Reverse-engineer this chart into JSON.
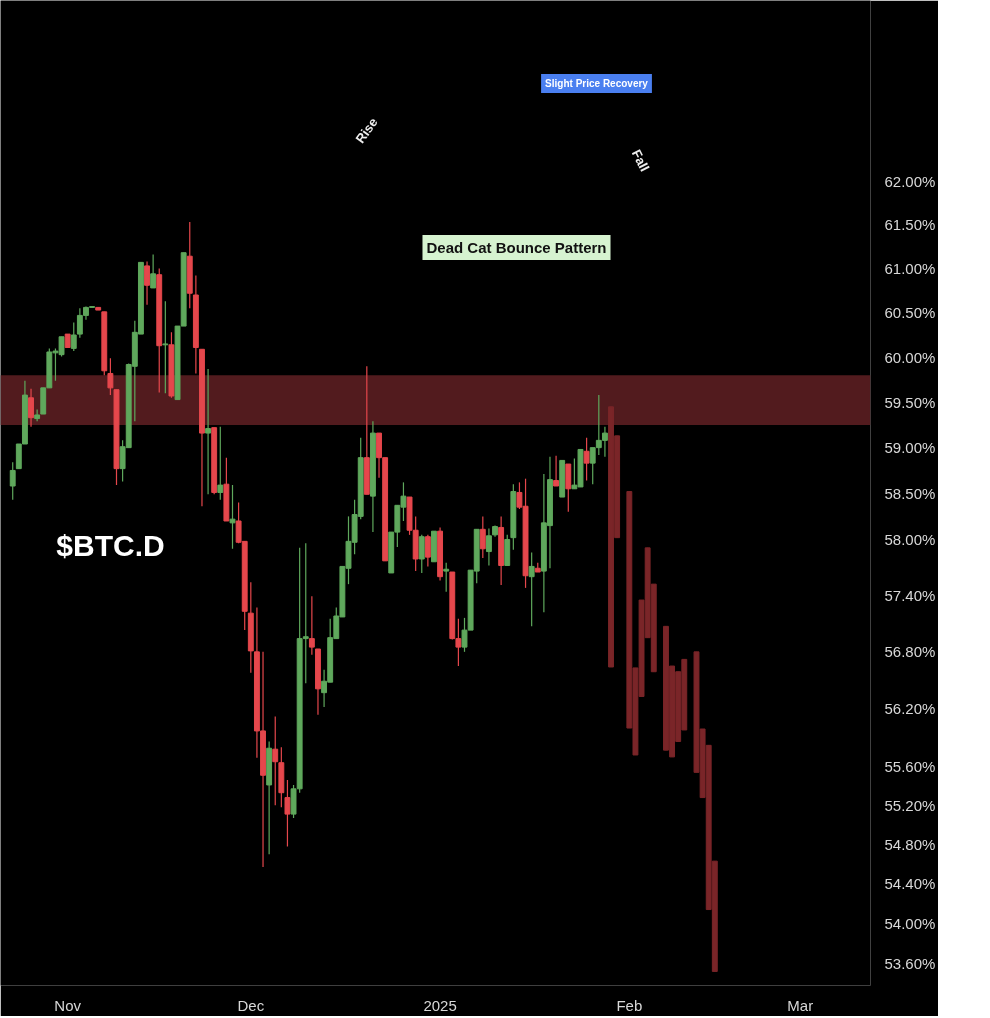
{
  "chart_data": {
    "type": "candlestick",
    "annotations": [
      "$BTC.D",
      "Rise",
      "Slight Price Recovery",
      "Fall",
      "Dead Cat Bounce Pattern"
    ],
    "xlim": [
      "2024-10-21",
      "2025-03-12T12:00"
    ],
    "xticks": [
      {
        "value": "2024-11-01",
        "label": "Nov"
      },
      {
        "value": "2024-12-01",
        "label": "Dec"
      },
      {
        "value": "2025-01-01",
        "label": "2025"
      },
      {
        "value": "2025-02-01",
        "label": "Feb"
      },
      {
        "value": "2025-03-01",
        "label": "Mar"
      }
    ],
    "log": true,
    "ylim": [
      53.38,
      64.12
    ],
    "yticks": [
      {
        "value": 62,
        "label": "62.00%"
      },
      {
        "value": 61.5,
        "label": "61.50%"
      },
      {
        "value": 61,
        "label": "61.00%"
      },
      {
        "value": 60.5,
        "label": "60.50%"
      },
      {
        "value": 60,
        "label": "60.00%"
      },
      {
        "value": 59.5,
        "label": "59.50%"
      },
      {
        "value": 59,
        "label": "59.00%"
      },
      {
        "value": 58.5,
        "label": "58.50%"
      },
      {
        "value": 58,
        "label": "58.00%"
      },
      {
        "value": 57.4,
        "label": "57.40%"
      },
      {
        "value": 56.8,
        "label": "56.80%"
      },
      {
        "value": 56.2,
        "label": "56.20%"
      },
      {
        "value": 55.6,
        "label": "55.60%"
      },
      {
        "value": 55.2,
        "label": "55.20%"
      },
      {
        "value": 54.8,
        "label": "54.80%"
      },
      {
        "value": 54.4,
        "label": "54.40%"
      },
      {
        "value": 54,
        "label": "54.00%"
      },
      {
        "value": 53.6,
        "label": "53.60%"
      }
    ],
    "bands": [
      {
        "axis": "y",
        "from": 59.25,
        "to": 59.8,
        "color": "#521b1e"
      }
    ],
    "series": [
      {
        "x": [
          "2024-10-23",
          "2024-10-24",
          "2024-10-25",
          "2024-10-26",
          "2024-10-27",
          "2024-10-28",
          "2024-10-29",
          "2024-10-30",
          "2024-10-31",
          "2024-11-01",
          "2024-11-02",
          "2024-11-03",
          "2024-11-04",
          "2024-11-05",
          "2024-11-06",
          "2024-11-07",
          "2024-11-08",
          "2024-11-09",
          "2024-11-10",
          "2024-11-11",
          "2024-11-12",
          "2024-11-13",
          "2024-11-14",
          "2024-11-15",
          "2024-11-16",
          "2024-11-17",
          "2024-11-18",
          "2024-11-19",
          "2024-11-20",
          "2024-11-21",
          "2024-11-22",
          "2024-11-23",
          "2024-11-24",
          "2024-11-25",
          "2024-11-26",
          "2024-11-27",
          "2024-11-28",
          "2024-11-29",
          "2024-11-30",
          "2024-12-01",
          "2024-12-02",
          "2024-12-03",
          "2024-12-04",
          "2024-12-05",
          "2024-12-06",
          "2024-12-07",
          "2024-12-08",
          "2024-12-09",
          "2024-12-10",
          "2024-12-11",
          "2024-12-12",
          "2024-12-13",
          "2024-12-14",
          "2024-12-15",
          "2024-12-16",
          "2024-12-17",
          "2024-12-18",
          "2024-12-19",
          "2024-12-20",
          "2024-12-21",
          "2024-12-22",
          "2024-12-23",
          "2024-12-24",
          "2024-12-25",
          "2024-12-26",
          "2024-12-27",
          "2024-12-28",
          "2024-12-29",
          "2024-12-30",
          "2024-12-31",
          "2025-01-01",
          "2025-01-02",
          "2025-01-03",
          "2025-01-04",
          "2025-01-05",
          "2025-01-06",
          "2025-01-07",
          "2025-01-08",
          "2025-01-09",
          "2025-01-10",
          "2025-01-11",
          "2025-01-12",
          "2025-01-13",
          "2025-01-14",
          "2025-01-15",
          "2025-01-16",
          "2025-01-17",
          "2025-01-18",
          "2025-01-19",
          "2025-01-20",
          "2025-01-21",
          "2025-01-22",
          "2025-01-23",
          "2025-01-24",
          "2025-01-25",
          "2025-01-26",
          "2025-01-27",
          "2025-01-28"
        ],
        "ohlc": [
          [
            58.58,
            58.84,
            58.43,
            58.75
          ],
          [
            58.77,
            59.04,
            58.77,
            59.04
          ],
          [
            59.04,
            59.74,
            59.04,
            59.58
          ],
          [
            59.55,
            59.65,
            59.23,
            59.33
          ],
          [
            59.32,
            59.42,
            59.29,
            59.36
          ],
          [
            59.37,
            59.66,
            59.37,
            59.66
          ],
          [
            59.66,
            60.1,
            59.66,
            60.06
          ],
          [
            60.05,
            60.1,
            59.74,
            60.07
          ],
          [
            60.03,
            60.23,
            60.01,
            60.23
          ],
          [
            60.26,
            60.26,
            60.11,
            60.11
          ],
          [
            60.1,
            60.39,
            60.07,
            60.25
          ],
          [
            60.26,
            60.55,
            60.22,
            60.47
          ],
          [
            60.47,
            60.57,
            60.42,
            60.56
          ],
          [
            60.56,
            60.57,
            60.56,
            60.57
          ],
          [
            60.56,
            60.56,
            60.53,
            60.53
          ],
          [
            60.51,
            60.51,
            59.8,
            59.85
          ],
          [
            59.82,
            59.99,
            59.58,
            59.66
          ],
          [
            59.64,
            59.64,
            58.59,
            58.77
          ],
          [
            58.77,
            59.08,
            58.63,
            59.01
          ],
          [
            59.0,
            59.93,
            59.0,
            59.92
          ],
          [
            59.9,
            60.41,
            59.29,
            60.28
          ],
          [
            60.26,
            61.07,
            60.26,
            61.07
          ],
          [
            61.03,
            61.08,
            60.59,
            60.81
          ],
          [
            60.78,
            61.16,
            60.78,
            60.94
          ],
          [
            60.93,
            61.0,
            59.61,
            60.13
          ],
          [
            60.14,
            60.63,
            59.6,
            60.15
          ],
          [
            60.14,
            60.28,
            59.55,
            59.57
          ],
          [
            59.53,
            60.35,
            59.53,
            60.35
          ],
          [
            60.35,
            61.18,
            60.35,
            61.18
          ],
          [
            61.14,
            61.53,
            60.55,
            60.72
          ],
          [
            60.7,
            60.92,
            59.82,
            60.11
          ],
          [
            60.09,
            60.09,
            58.36,
            59.16
          ],
          [
            59.16,
            59.87,
            58.49,
            59.21
          ],
          [
            59.22,
            59.22,
            58.49,
            58.51
          ],
          [
            58.51,
            59.23,
            58.43,
            58.59
          ],
          [
            58.6,
            58.89,
            58.2,
            58.2
          ],
          [
            58.18,
            58.59,
            57.9,
            58.22
          ],
          [
            58.2,
            58.4,
            57.96,
            57.97
          ],
          [
            57.98,
            57.98,
            57.03,
            57.23
          ],
          [
            57.21,
            57.54,
            56.58,
            56.81
          ],
          [
            56.8,
            57.27,
            55.69,
            55.97
          ],
          [
            55.97,
            56.8,
            54.57,
            55.51
          ],
          [
            55.41,
            55.86,
            54.7,
            55.79
          ],
          [
            55.78,
            56.12,
            55.2,
            55.65
          ],
          [
            55.64,
            55.8,
            55.18,
            55.33
          ],
          [
            55.28,
            55.46,
            54.78,
            55.11
          ],
          [
            55.11,
            55.41,
            55.07,
            55.37
          ],
          [
            55.37,
            57.91,
            55.33,
            56.94
          ],
          [
            56.94,
            57.96,
            56.47,
            56.96
          ],
          [
            56.94,
            57.39,
            56.77,
            56.85
          ],
          [
            56.83,
            56.83,
            56.14,
            56.41
          ],
          [
            56.37,
            56.61,
            56.22,
            56.49
          ],
          [
            56.48,
            57.15,
            56.48,
            56.95
          ],
          [
            56.94,
            57.27,
            56.94,
            57.18
          ],
          [
            57.17,
            57.71,
            57.17,
            57.71
          ],
          [
            57.69,
            58.25,
            57.52,
            57.98
          ],
          [
            57.97,
            58.43,
            57.84,
            58.27
          ],
          [
            58.25,
            59.11,
            58.22,
            58.89
          ],
          [
            58.89,
            59.9,
            58.49,
            58.49
          ],
          [
            58.47,
            59.29,
            58.08,
            59.16
          ],
          [
            59.16,
            59.16,
            58.67,
            58.89
          ],
          [
            58.89,
            58.89,
            57.77,
            57.77
          ],
          [
            57.64,
            58.08,
            57.64,
            58.08
          ],
          [
            58.08,
            58.37,
            57.92,
            58.37
          ],
          [
            58.35,
            58.62,
            58.2,
            58.47
          ],
          [
            58.46,
            58.46,
            58.05,
            58.1
          ],
          [
            58.1,
            58.25,
            57.66,
            57.79
          ],
          [
            57.79,
            58.05,
            57.64,
            58.03
          ],
          [
            58.03,
            58.05,
            57.71,
            57.81
          ],
          [
            57.76,
            58.09,
            57.76,
            58.09
          ],
          [
            58.09,
            58.13,
            57.56,
            57.6
          ],
          [
            57.66,
            57.75,
            57.44,
            57.68
          ],
          [
            57.65,
            57.65,
            56.93,
            56.94
          ],
          [
            56.94,
            57.15,
            56.65,
            56.85
          ],
          [
            56.85,
            57.16,
            56.8,
            57.03
          ],
          [
            57.03,
            57.67,
            57.03,
            57.67
          ],
          [
            57.66,
            58.11,
            57.53,
            58.11
          ],
          [
            58.11,
            58.25,
            57.8,
            57.9
          ],
          [
            57.87,
            58.12,
            57.72,
            58.04
          ],
          [
            58.05,
            58.15,
            58.03,
            58.14
          ],
          [
            58.13,
            58.25,
            57.51,
            57.72
          ],
          [
            57.72,
            58.05,
            57.72,
            58.0
          ],
          [
            58.02,
            58.6,
            57.89,
            58.52
          ],
          [
            58.51,
            58.62,
            58.33,
            58.35
          ],
          [
            58.36,
            58.66,
            57.48,
            57.61
          ],
          [
            57.6,
            57.86,
            57.07,
            57.71
          ],
          [
            57.69,
            57.75,
            57.65,
            57.65
          ],
          [
            57.66,
            58.71,
            57.22,
            58.18
          ],
          [
            58.15,
            58.9,
            57.69,
            58.65
          ],
          [
            58.64,
            58.91,
            58.58,
            58.58
          ],
          [
            58.46,
            58.86,
            58.46,
            58.86
          ],
          [
            58.82,
            58.82,
            58.3,
            58.55
          ],
          [
            58.55,
            58.88,
            58.55,
            58.59
          ],
          [
            58.57,
            58.98,
            58.57,
            58.98
          ],
          [
            58.96,
            59.11,
            58.64,
            58.83
          ],
          [
            58.83,
            59.0,
            58.6,
            59.0
          ],
          [
            59.0,
            59.58,
            58.92,
            59.08
          ],
          [
            59.08,
            59.23,
            58.9,
            59.16
          ]
        ],
        "colors": [
          "#5fa85c",
          "#5fa85c",
          "#5fa85c",
          "#e5474c",
          "#5fa85c",
          "#5fa85c",
          "#5fa85c",
          "#5fa85c",
          "#5fa85c",
          "#e5474c",
          "#5fa85c",
          "#5fa85c",
          "#5fa85c",
          "#5fa85c",
          "#e5474c",
          "#e5474c",
          "#e5474c",
          "#e5474c",
          "#5fa85c",
          "#5fa85c",
          "#5fa85c",
          "#5fa85c",
          "#e5474c",
          "#5fa85c",
          "#e5474c",
          "#5fa85c",
          "#e5474c",
          "#5fa85c",
          "#5fa85c",
          "#e5474c",
          "#e5474c",
          "#e5474c",
          "#5fa85c",
          "#e5474c",
          "#5fa85c",
          "#e5474c",
          "#5fa85c",
          "#e5474c",
          "#e5474c",
          "#e5474c",
          "#e5474c",
          "#e5474c",
          "#5fa85c",
          "#e5474c",
          "#e5474c",
          "#e5474c",
          "#5fa85c",
          "#5fa85c",
          "#5fa85c",
          "#e5474c",
          "#e5474c",
          "#5fa85c",
          "#5fa85c",
          "#5fa85c",
          "#5fa85c",
          "#5fa85c",
          "#5fa85c",
          "#5fa85c",
          "#e5474c",
          "#5fa85c",
          "#e5474c",
          "#e5474c",
          "#5fa85c",
          "#5fa85c",
          "#5fa85c",
          "#e5474c",
          "#e5474c",
          "#5fa85c",
          "#e5474c",
          "#5fa85c",
          "#e5474c",
          "#5fa85c",
          "#e5474c",
          "#e5474c",
          "#5fa85c",
          "#5fa85c",
          "#5fa85c",
          "#e5474c",
          "#5fa85c",
          "#5fa85c",
          "#e5474c",
          "#5fa85c",
          "#5fa85c",
          "#e5474c",
          "#e5474c",
          "#5fa85c",
          "#e5474c",
          "#5fa85c",
          "#5fa85c",
          "#e5474c",
          "#5fa85c",
          "#e5474c",
          "#5fa85c",
          "#5fa85c",
          "#e5474c",
          "#5fa85c",
          "#5fa85c",
          "#5fa85c"
        ]
      },
      {
        "x": [
          "2025-01-29",
          "2025-01-30",
          "2025-02-01",
          "2025-02-02",
          "2025-02-03",
          "2025-02-04",
          "2025-02-05",
          "2025-02-07",
          "2025-02-08",
          "2025-02-09",
          "2025-02-10",
          "2025-02-12",
          "2025-02-13",
          "2025-02-14",
          "2025-02-15"
        ],
        "ohlc": [
          [
            59.45,
            59.45,
            56.64,
            56.64
          ],
          [
            59.13,
            59.13,
            58.02,
            58.02
          ],
          [
            58.52,
            58.52,
            56.0,
            56.0
          ],
          [
            56.63,
            56.63,
            55.72,
            55.72
          ],
          [
            57.35,
            57.35,
            56.33,
            56.33
          ],
          [
            57.91,
            57.91,
            56.95,
            56.95
          ],
          [
            57.52,
            57.52,
            56.59,
            56.59
          ],
          [
            57.07,
            57.07,
            55.77,
            55.77
          ],
          [
            56.65,
            56.65,
            55.7,
            55.7
          ],
          [
            56.59,
            56.59,
            55.86,
            55.86
          ],
          [
            56.72,
            56.72,
            55.98,
            55.98
          ],
          [
            56.8,
            56.8,
            55.54,
            55.54
          ],
          [
            55.99,
            55.99,
            55.28,
            55.28
          ],
          [
            55.82,
            55.82,
            54.14,
            54.14
          ],
          [
            54.63,
            54.63,
            53.52,
            53.52
          ]
        ],
        "color": "#7a2528"
      }
    ]
  }
}
